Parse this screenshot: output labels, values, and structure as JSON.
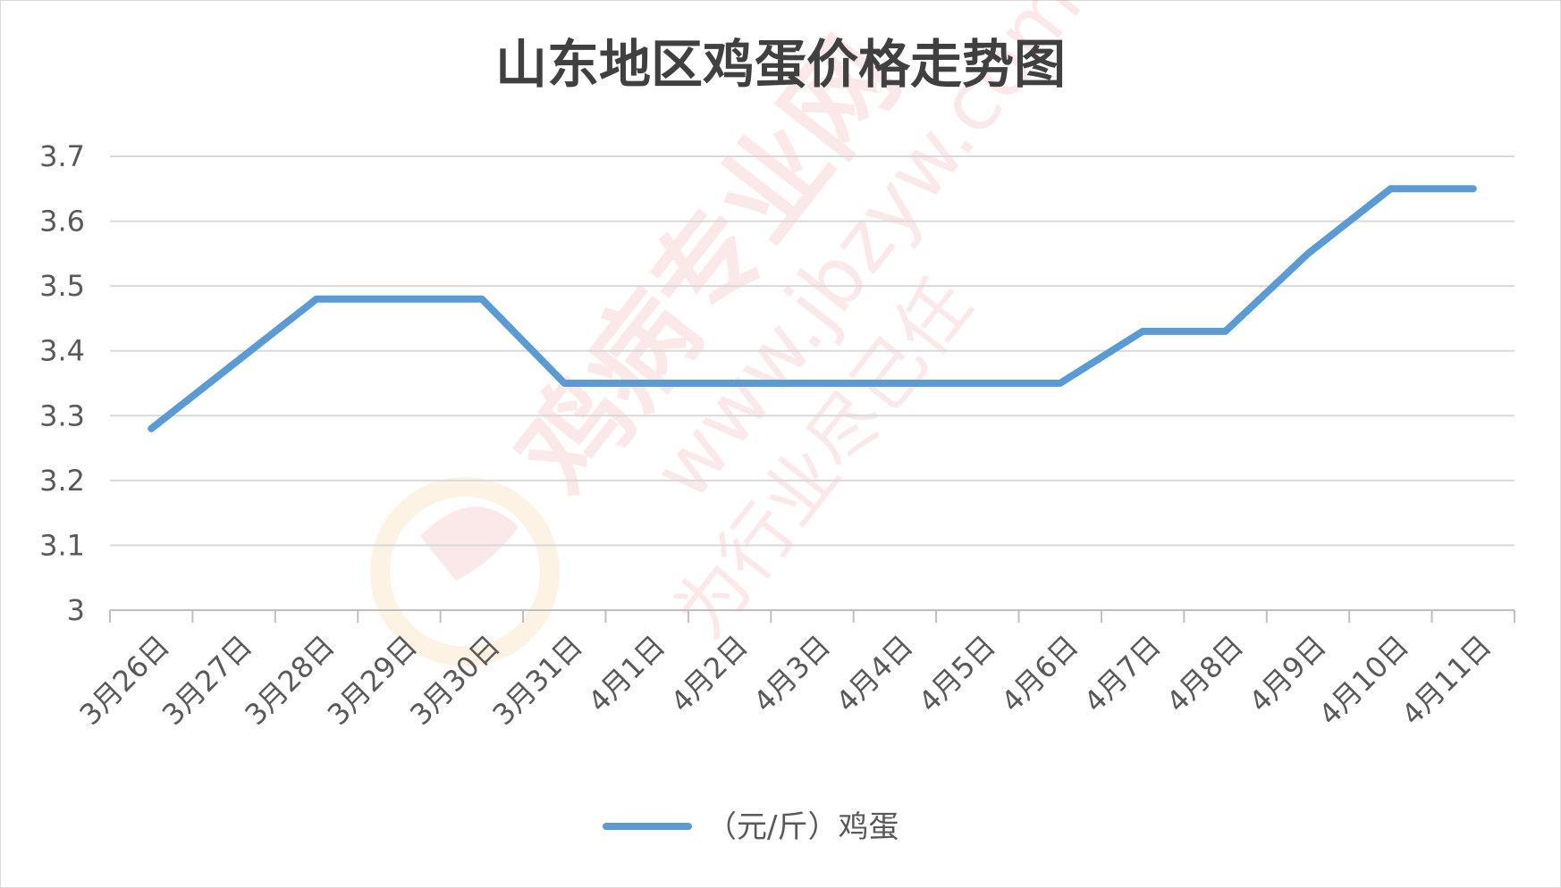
{
  "chart_data": {
    "type": "line",
    "title": "山东地区鸡蛋价格走势图",
    "xlabel": "",
    "ylabel": "",
    "categories": [
      "3月26日",
      "3月27日",
      "3月28日",
      "3月29日",
      "3月30日",
      "3月31日",
      "4月1日",
      "4月2日",
      "4月3日",
      "4月4日",
      "4月5日",
      "4月6日",
      "4月7日",
      "4月8日",
      "4月9日",
      "4月10日",
      "4月11日"
    ],
    "series": [
      {
        "name": "（元/斤）鸡蛋",
        "values": [
          3.28,
          3.38,
          3.48,
          3.48,
          3.48,
          3.35,
          3.35,
          3.35,
          3.35,
          3.35,
          3.35,
          3.35,
          3.43,
          3.43,
          3.55,
          3.65,
          3.65
        ],
        "color": "#5b9bd5"
      }
    ],
    "ylim": [
      3,
      3.7
    ],
    "yticks": [
      3,
      3.1,
      3.2,
      3.3,
      3.4,
      3.5,
      3.6,
      3.7
    ],
    "ytick_labels": [
      "3",
      "3.1",
      "3.2",
      "3.3",
      "3.4",
      "3.5",
      "3.6",
      "3.7"
    ],
    "grid": true,
    "legend_position": "bottom"
  },
  "watermark": {
    "text": "鸡病专业网",
    "url": "www.jbzyw.com",
    "slogan": "为行业尽己任",
    "color": "#e05050"
  }
}
